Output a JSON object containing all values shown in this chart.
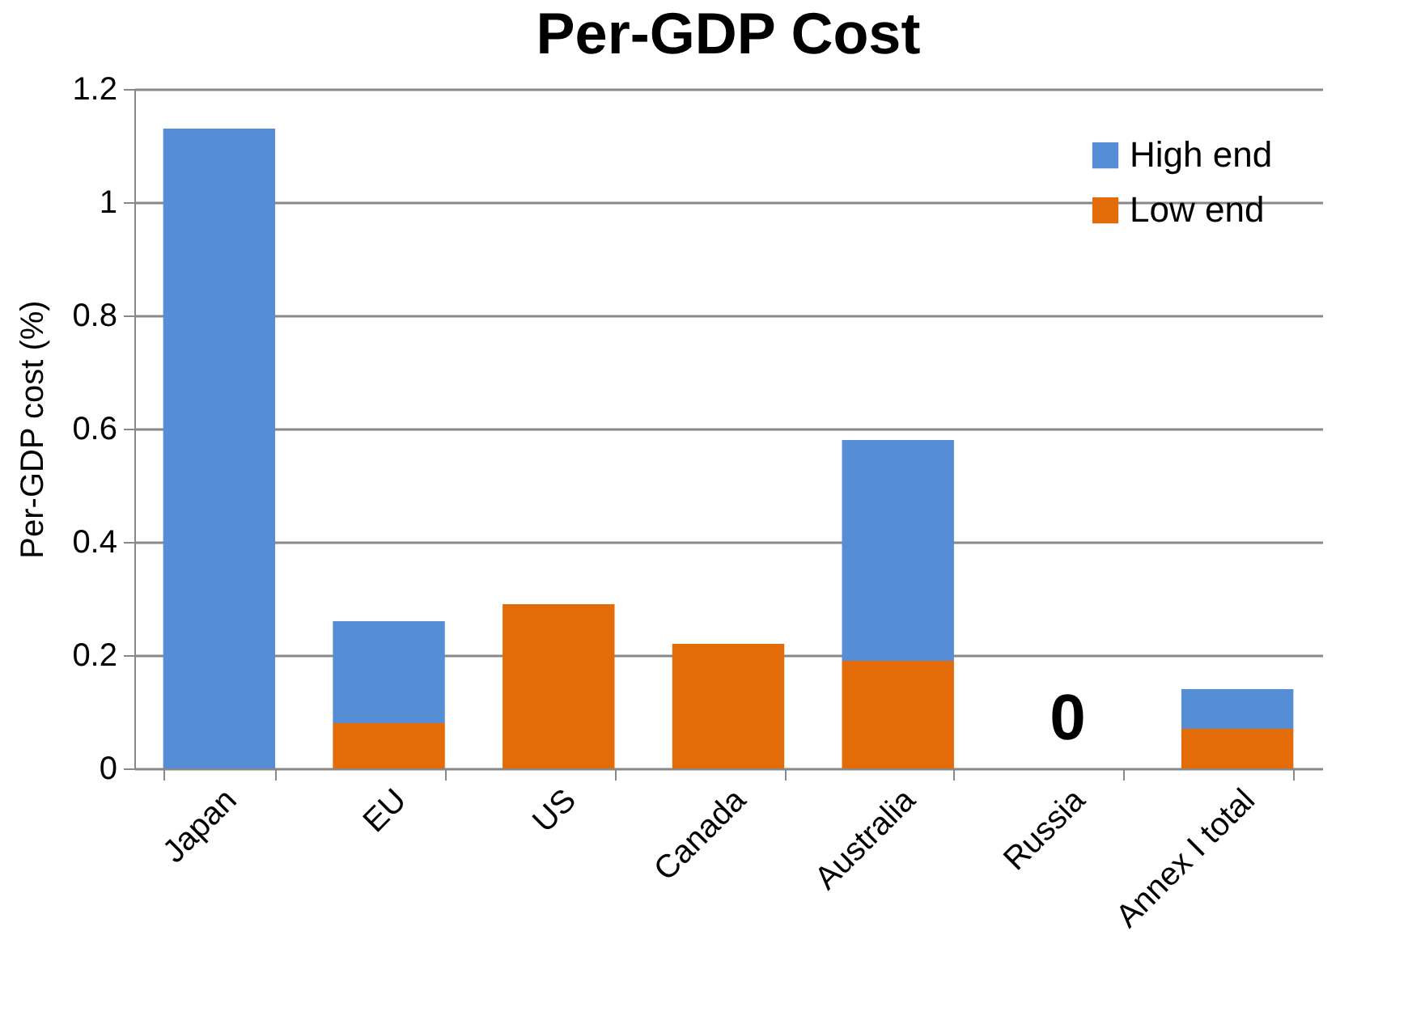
{
  "chart_data": {
    "type": "bar",
    "title": "Per-GDP Cost",
    "ylabel": "Per-GDP cost (%)",
    "categories": [
      "Japan",
      "EU",
      "US",
      "Canada",
      "Australia",
      "Russia",
      "Annex I total"
    ],
    "stacked": true,
    "series": [
      {
        "name": "Low end",
        "color": "#e36c09",
        "values": [
          0,
          0.08,
          0.29,
          0.22,
          0.19,
          0,
          0.07
        ]
      },
      {
        "name": "High end",
        "color": "#558ed5",
        "values": [
          1.13,
          0.18,
          0,
          0,
          0.39,
          0,
          0.07
        ]
      }
    ],
    "ylim": [
      0,
      1.2
    ],
    "yticks": [
      0,
      0.2,
      0.4,
      0.6,
      0.8,
      1,
      1.2
    ],
    "grid": "y",
    "legend": "top right",
    "annotations": [
      {
        "text": "0",
        "x": "Russia",
        "y": 0
      }
    ]
  }
}
